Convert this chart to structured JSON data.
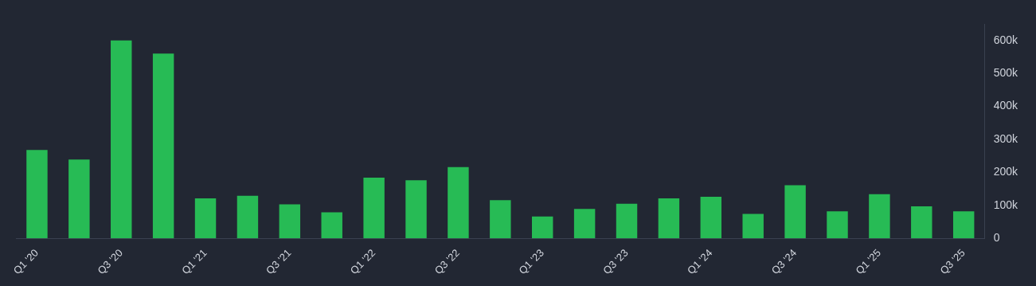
{
  "chart_data": {
    "type": "bar",
    "categories": [
      "Q1 '20",
      null,
      "Q3 '20",
      null,
      "Q1 '21",
      null,
      "Q3 '21",
      null,
      "Q1 '22",
      null,
      "Q3 '22",
      null,
      "Q1 '23",
      null,
      "Q3 '23",
      null,
      "Q1 '24",
      null,
      "Q3 '24",
      null,
      "Q1 '25",
      null,
      "Q3 '25"
    ],
    "values": [
      268000,
      239000,
      600000,
      560000,
      121000,
      129000,
      103000,
      79000,
      184000,
      176000,
      216000,
      116000,
      66000,
      89000,
      105000,
      121000,
      126000,
      74000,
      161000,
      82000,
      134000,
      97000,
      82000
    ],
    "color": "#27bb55",
    "ylim": [
      0,
      650000
    ],
    "yticks": [
      0,
      {
        "value": 100000,
        "label": "100k"
      },
      {
        "value": 200000,
        "label": "200k"
      },
      {
        "value": 300000,
        "label": "300k"
      },
      {
        "value": 400000,
        "label": "400k"
      },
      {
        "value": 500000,
        "label": "500k"
      },
      {
        "value": 600000,
        "label": "600k"
      }
    ],
    "grid": false,
    "legend": false
  }
}
